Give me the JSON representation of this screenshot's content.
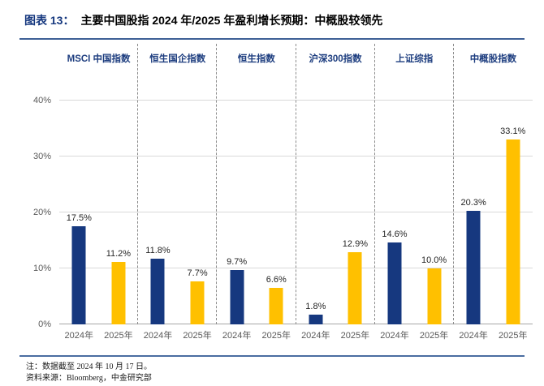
{
  "title": {
    "figure_label": "图表 13：",
    "text": "主要中国股指 2024 年/2025 年盈利增长预期：中概股较领先"
  },
  "chart_data": {
    "type": "bar",
    "title": "主要中国股指 2024 年/2025 年盈利增长预期：中概股较领先",
    "groups": [
      "MSCI 中国指数",
      "恒生国企指数",
      "恒生指数",
      "沪深300指数",
      "上证综指",
      "中概股指数"
    ],
    "categories": [
      "2024年",
      "2025年"
    ],
    "series": [
      {
        "name": "2024年",
        "color": "#16387f",
        "values": [
          17.5,
          11.8,
          9.7,
          1.8,
          14.6,
          20.3
        ],
        "labels": [
          "17.5%",
          "11.8%",
          "9.7%",
          "1.8%",
          "14.6%",
          "20.3%"
        ]
      },
      {
        "name": "2025年",
        "color": "#ffc000",
        "values": [
          11.2,
          7.7,
          6.6,
          12.9,
          10.0,
          33.1
        ],
        "labels": [
          "11.2%",
          "7.7%",
          "6.6%",
          "12.9%",
          "10.0%",
          "33.1%"
        ]
      }
    ],
    "ylim": [
      0,
      45
    ],
    "yticks": [
      {
        "value": 0,
        "label": "0%"
      },
      {
        "value": 10,
        "label": "10%"
      },
      {
        "value": 20,
        "label": "20%"
      },
      {
        "value": 30,
        "label": "30%"
      },
      {
        "value": 40,
        "label": "40%"
      }
    ],
    "grid": "horizontal",
    "legend": "none"
  },
  "notes": {
    "line1": "注：数据截至 2024 年 10 月 17 日。",
    "line2": "资料来源：Bloomberg，中金研究部"
  },
  "colors": {
    "navy": "#16387f",
    "gold": "#ffc000",
    "rule_blue": "#3d5f96",
    "gridline": "#d9d9d9",
    "axis_line": "#a6a6a6",
    "tick_text": "#595959",
    "header_text": "#1d3d7f"
  }
}
